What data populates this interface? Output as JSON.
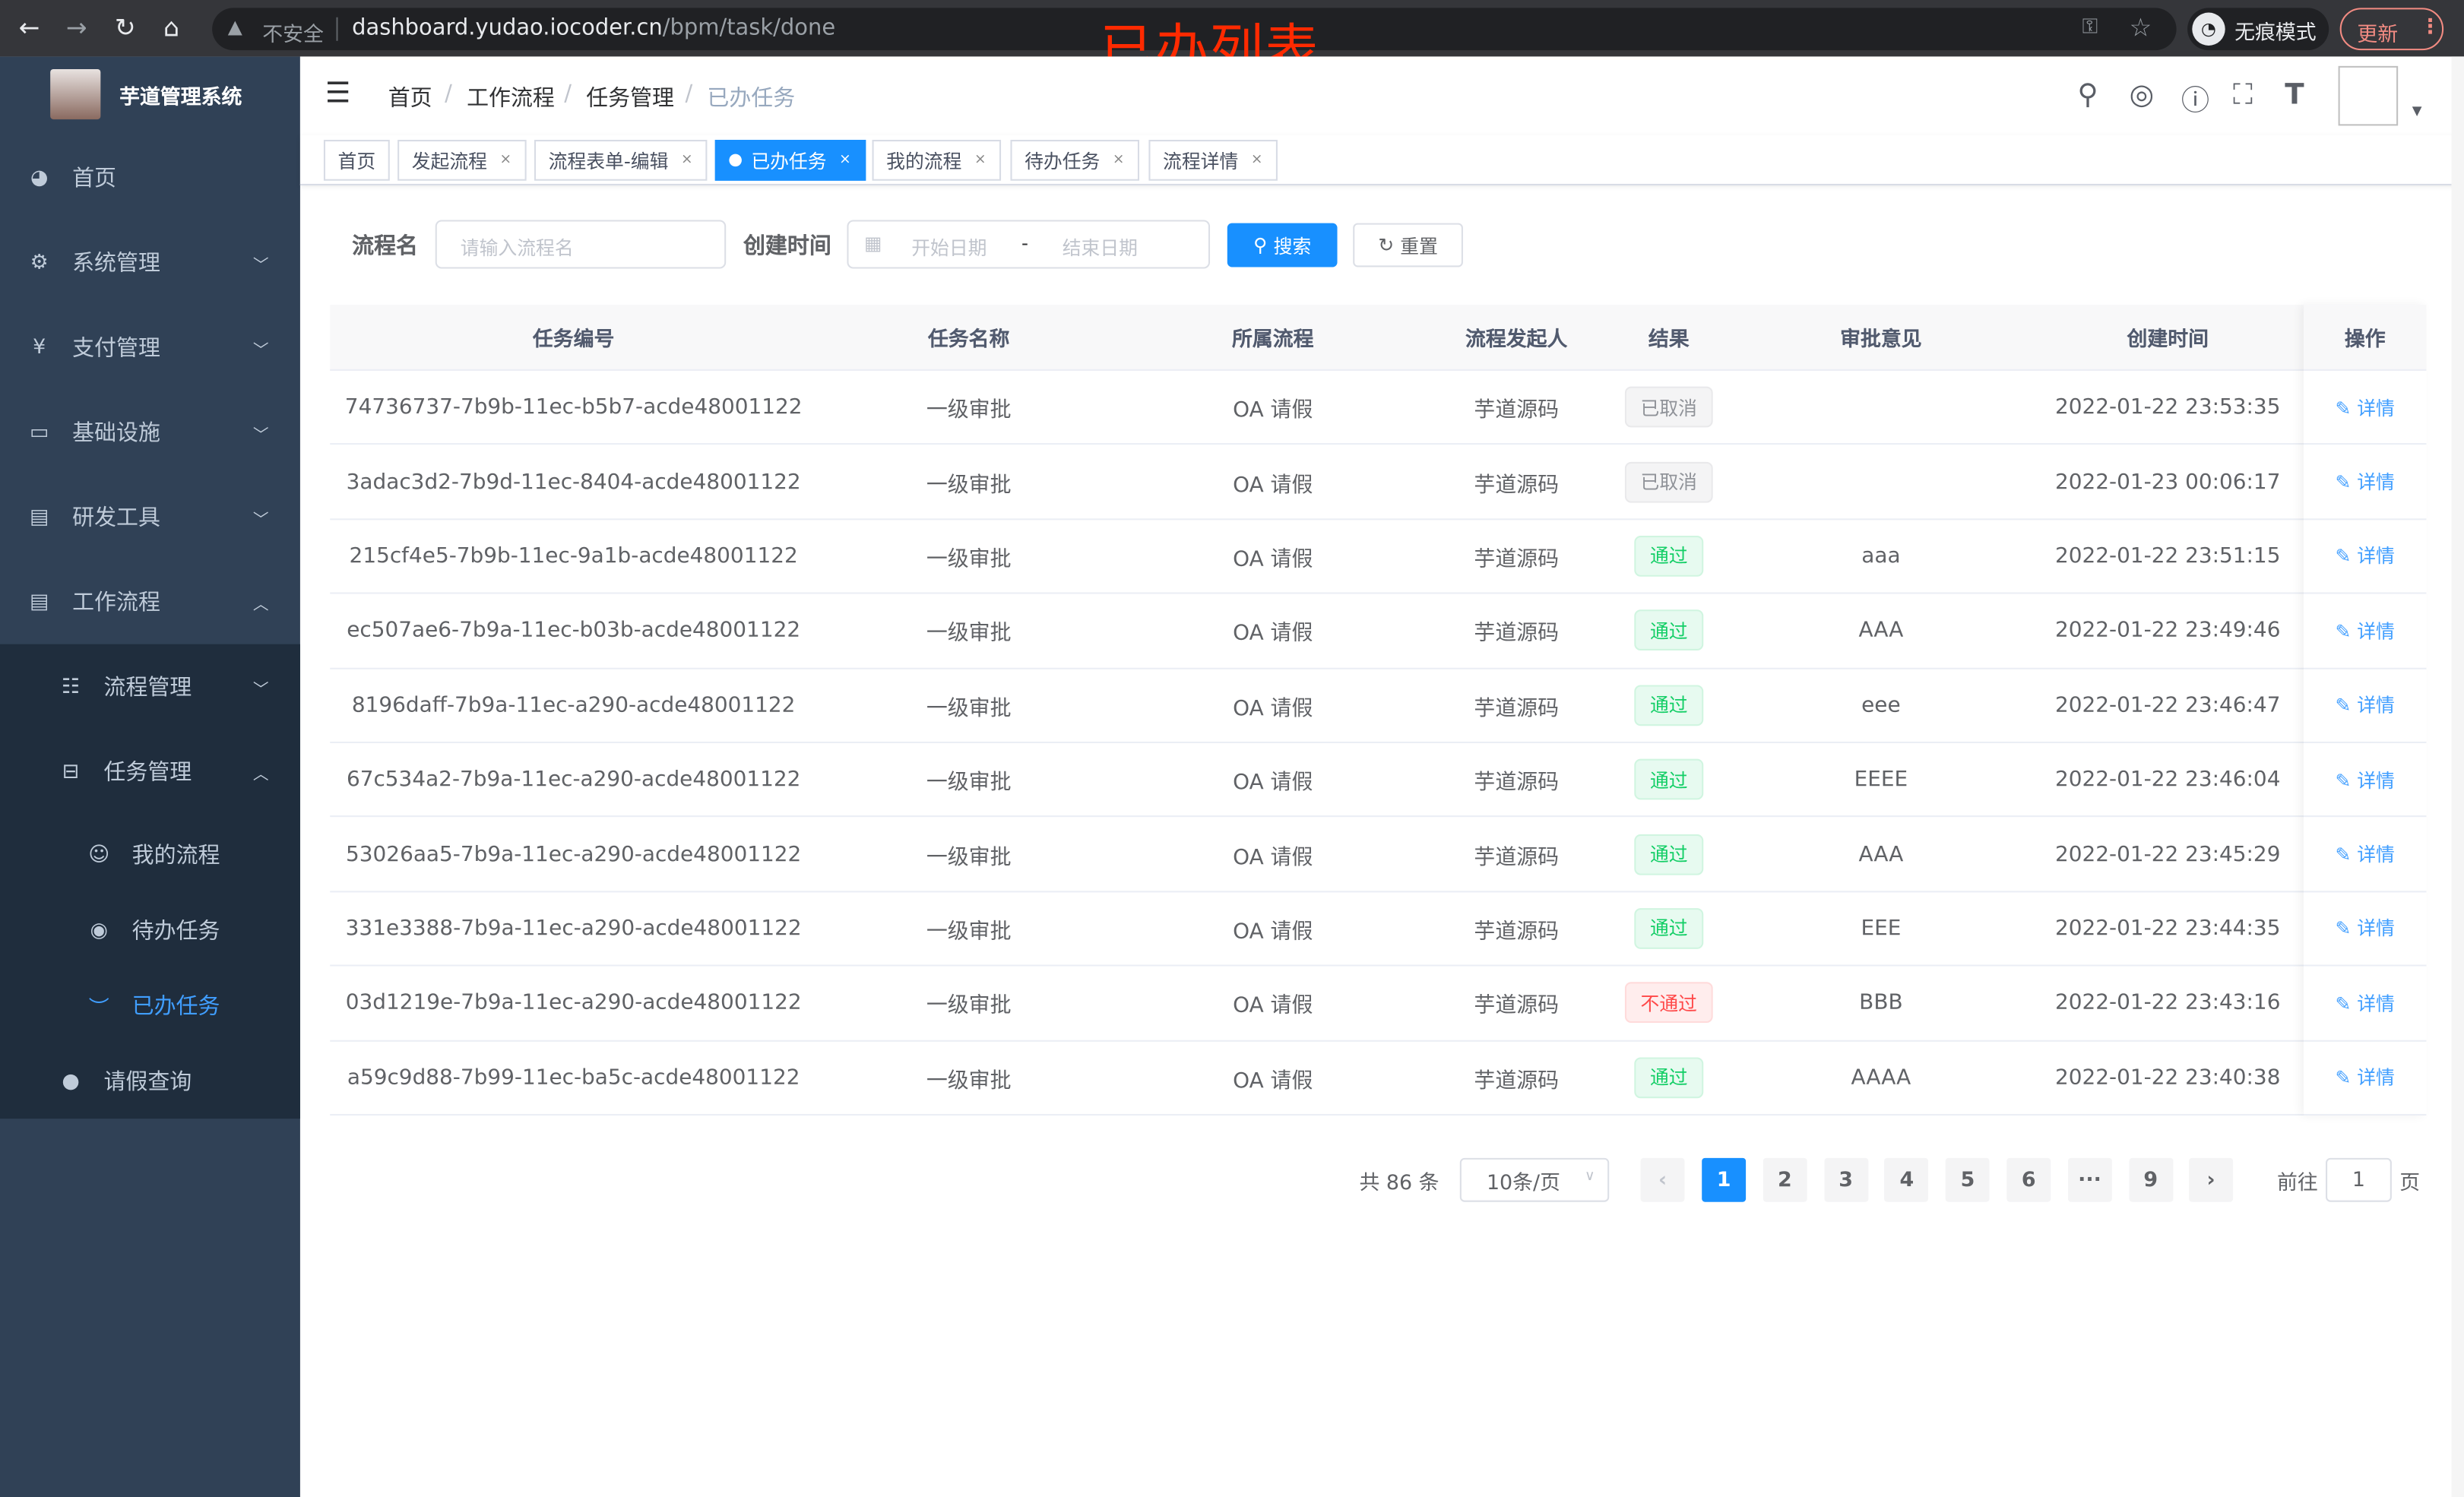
{
  "browser": {
    "insecure_label": "不安全",
    "url_host": "dashboard.yudao.iocoder.cn",
    "url_path": "/bpm/task/done",
    "incognito_label": "无痕模式",
    "update_label": "更新"
  },
  "overlay_title": "已办列表",
  "sidebar": {
    "app_title": "芋道管理系统",
    "items": [
      {
        "label": "首页",
        "icon": "dashboard-icon"
      },
      {
        "label": "系统管理",
        "icon": "gear-icon"
      },
      {
        "label": "支付管理",
        "icon": "yen-icon"
      },
      {
        "label": "基础设施",
        "icon": "monitor-icon"
      },
      {
        "label": "研发工具",
        "icon": "toolbox-icon"
      },
      {
        "label": "工作流程",
        "icon": "toolbox-icon"
      }
    ],
    "sub_items": [
      {
        "label": "流程管理",
        "icon": "list-icon"
      },
      {
        "label": "任务管理",
        "icon": "tree-icon"
      }
    ],
    "task_items": [
      {
        "label": "我的流程",
        "icon": "people-icon"
      },
      {
        "label": "待办任务",
        "icon": "eye-icon"
      },
      {
        "label": "已办任务",
        "icon": "eye-closed-icon",
        "active": true
      }
    ],
    "leave_item": {
      "label": "请假查询",
      "icon": "user-icon"
    }
  },
  "breadcrumb": [
    "首页",
    "工作流程",
    "任务管理",
    "已办任务"
  ],
  "tags": [
    {
      "label": "首页",
      "closable": false
    },
    {
      "label": "发起流程",
      "closable": true
    },
    {
      "label": "流程表单-编辑",
      "closable": true
    },
    {
      "label": "已办任务",
      "closable": true,
      "active": true
    },
    {
      "label": "我的流程",
      "closable": true
    },
    {
      "label": "待办任务",
      "closable": true
    },
    {
      "label": "流程详情",
      "closable": true
    }
  ],
  "search": {
    "name_label": "流程名",
    "name_placeholder": "请输入流程名",
    "time_label": "创建时间",
    "start_placeholder": "开始日期",
    "range_sep": "-",
    "end_placeholder": "结束日期",
    "search_button": "搜索",
    "reset_button": "重置"
  },
  "table": {
    "columns": [
      "任务编号",
      "任务名称",
      "所属流程",
      "流程发起人",
      "结果",
      "审批意见",
      "创建时间",
      "操作"
    ],
    "action_label": "详情",
    "rows": [
      {
        "id": "74736737-7b9b-11ec-b5b7-acde48001122",
        "name": "一级审批",
        "process": "OA 请假",
        "starter": "芋道源码",
        "result": "已取消",
        "result_type": "cancel",
        "comment": "",
        "created": "2022-01-22 23:53:35"
      },
      {
        "id": "3adac3d2-7b9d-11ec-8404-acde48001122",
        "name": "一级审批",
        "process": "OA 请假",
        "starter": "芋道源码",
        "result": "已取消",
        "result_type": "cancel",
        "comment": "",
        "created": "2022-01-23 00:06:17"
      },
      {
        "id": "215cf4e5-7b9b-11ec-9a1b-acde48001122",
        "name": "一级审批",
        "process": "OA 请假",
        "starter": "芋道源码",
        "result": "通过",
        "result_type": "pass",
        "comment": "aaa",
        "created": "2022-01-22 23:51:15"
      },
      {
        "id": "ec507ae6-7b9a-11ec-b03b-acde48001122",
        "name": "一级审批",
        "process": "OA 请假",
        "starter": "芋道源码",
        "result": "通过",
        "result_type": "pass",
        "comment": "AAA",
        "created": "2022-01-22 23:49:46"
      },
      {
        "id": "8196daff-7b9a-11ec-a290-acde48001122",
        "name": "一级审批",
        "process": "OA 请假",
        "starter": "芋道源码",
        "result": "通过",
        "result_type": "pass",
        "comment": "eee",
        "created": "2022-01-22 23:46:47"
      },
      {
        "id": "67c534a2-7b9a-11ec-a290-acde48001122",
        "name": "一级审批",
        "process": "OA 请假",
        "starter": "芋道源码",
        "result": "通过",
        "result_type": "pass",
        "comment": "EEEE",
        "created": "2022-01-22 23:46:04"
      },
      {
        "id": "53026aa5-7b9a-11ec-a290-acde48001122",
        "name": "一级审批",
        "process": "OA 请假",
        "starter": "芋道源码",
        "result": "通过",
        "result_type": "pass",
        "comment": "AAA",
        "created": "2022-01-22 23:45:29"
      },
      {
        "id": "331e3388-7b9a-11ec-a290-acde48001122",
        "name": "一级审批",
        "process": "OA 请假",
        "starter": "芋道源码",
        "result": "通过",
        "result_type": "pass",
        "comment": "EEE",
        "created": "2022-01-22 23:44:35"
      },
      {
        "id": "03d1219e-7b9a-11ec-a290-acde48001122",
        "name": "一级审批",
        "process": "OA 请假",
        "starter": "芋道源码",
        "result": "不通过",
        "result_type": "fail",
        "comment": "BBB",
        "created": "2022-01-22 23:43:16"
      },
      {
        "id": "a59c9d88-7b99-11ec-ba5c-acde48001122",
        "name": "一级审批",
        "process": "OA 请假",
        "starter": "芋道源码",
        "result": "通过",
        "result_type": "pass",
        "comment": "AAAA",
        "created": "2022-01-22 23:40:38"
      }
    ]
  },
  "pagination": {
    "total_label": "共 86 条",
    "page_size": "10条/页",
    "pages": [
      "1",
      "2",
      "3",
      "4",
      "5",
      "6",
      "···",
      "9"
    ],
    "current": "1",
    "goto_label": "前往",
    "goto_value": "1",
    "page_suffix": "页"
  },
  "colors": {
    "primary": "#1890ff",
    "sidebar": "#304156",
    "pass": "#13ce66",
    "fail": "#ff4949",
    "overlay": "#ff2a00"
  }
}
